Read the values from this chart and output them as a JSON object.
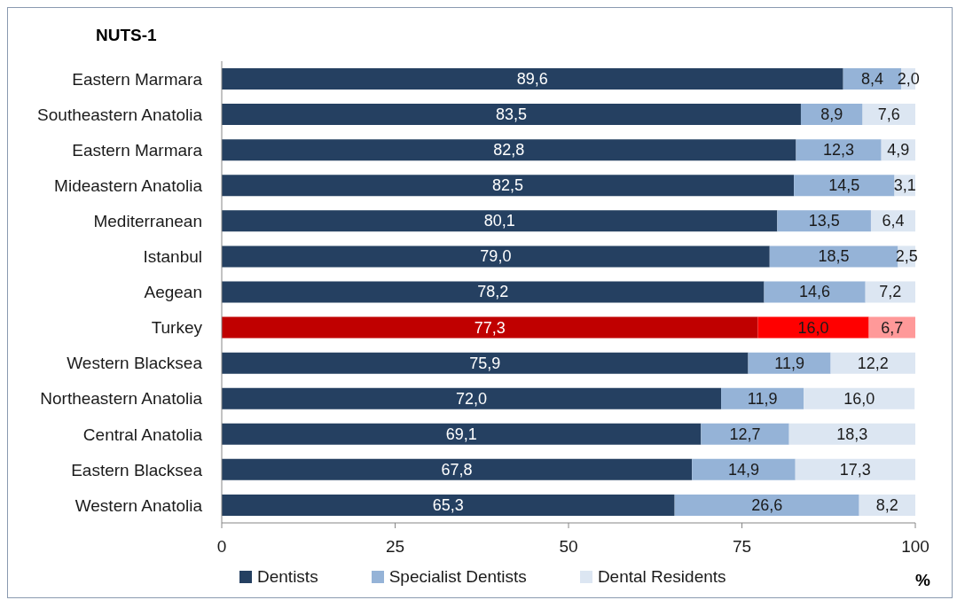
{
  "chart_data": {
    "type": "bar",
    "orientation": "horizontal",
    "stacked": true,
    "title": "NUTS-1",
    "xlabel": "%",
    "legend": "bottom",
    "categories": [
      "Eastern Marmara",
      "Southeastern Anatolia",
      "Eastern Marmara",
      "Mideastern Anatolia",
      "Mediterranean",
      "Istanbul",
      "Aegean",
      "Turkey",
      "Western Blacksea",
      "Northeastern Anatolia",
      "Central Anatolia",
      "Eastern Blacksea",
      "Western Anatolia"
    ],
    "xlim": [
      0,
      100
    ],
    "xticks": [
      0,
      25,
      50,
      75,
      100
    ],
    "series": [
      {
        "name": "Dentists",
        "color": "#254061",
        "colors": [
          "#254061",
          "#254061",
          "#254061",
          "#254061",
          "#254061",
          "#254061",
          "#254061",
          "#c00000",
          "#254061",
          "#254061",
          "#254061",
          "#254061",
          "#254061"
        ],
        "values": [
          89.6,
          83.5,
          82.8,
          82.5,
          80.1,
          79.0,
          78.2,
          77.3,
          75.9,
          72.0,
          69.1,
          67.8,
          65.3
        ],
        "value_labels": [
          "89,6",
          "83,5",
          "82,8",
          "82,5",
          "80,1",
          "79,0",
          "78,2",
          "77,3",
          "75,9",
          "72,0",
          "69,1",
          "67,8",
          "65,3"
        ]
      },
      {
        "name": "Specialist Dentists",
        "color": "#95b3d7",
        "colors": [
          "#95b3d7",
          "#95b3d7",
          "#95b3d7",
          "#95b3d7",
          "#95b3d7",
          "#95b3d7",
          "#95b3d7",
          "#ff0000",
          "#95b3d7",
          "#95b3d7",
          "#95b3d7",
          "#95b3d7",
          "#95b3d7"
        ],
        "values": [
          8.4,
          8.9,
          12.3,
          14.5,
          13.5,
          18.5,
          14.6,
          16.0,
          11.9,
          11.9,
          12.7,
          14.9,
          26.6
        ],
        "value_labels": [
          "8,4",
          "8,9",
          "12,3",
          "14,5",
          "13,5",
          "18,5",
          "14,6",
          "16,0",
          "11,9",
          "11,9",
          "12,7",
          "14,9",
          "26,6"
        ]
      },
      {
        "name": "Dental Residents",
        "color": "#dce6f2",
        "colors": [
          "#dce6f2",
          "#dce6f2",
          "#dce6f2",
          "#dce6f2",
          "#dce6f2",
          "#dce6f2",
          "#dce6f2",
          "#ff9999",
          "#dce6f2",
          "#dce6f2",
          "#dce6f2",
          "#dce6f2",
          "#dce6f2"
        ],
        "values": [
          2.0,
          7.6,
          4.9,
          3.1,
          6.4,
          2.5,
          7.2,
          6.7,
          12.2,
          16.0,
          18.3,
          17.3,
          8.2
        ],
        "value_labels": [
          "2,0",
          "7,6",
          "4,9",
          "3,1",
          "6,4",
          "2,5",
          "7,2",
          "6,7",
          "12,2",
          "16,0",
          "18,3",
          "17,3",
          "8,2"
        ]
      }
    ]
  }
}
